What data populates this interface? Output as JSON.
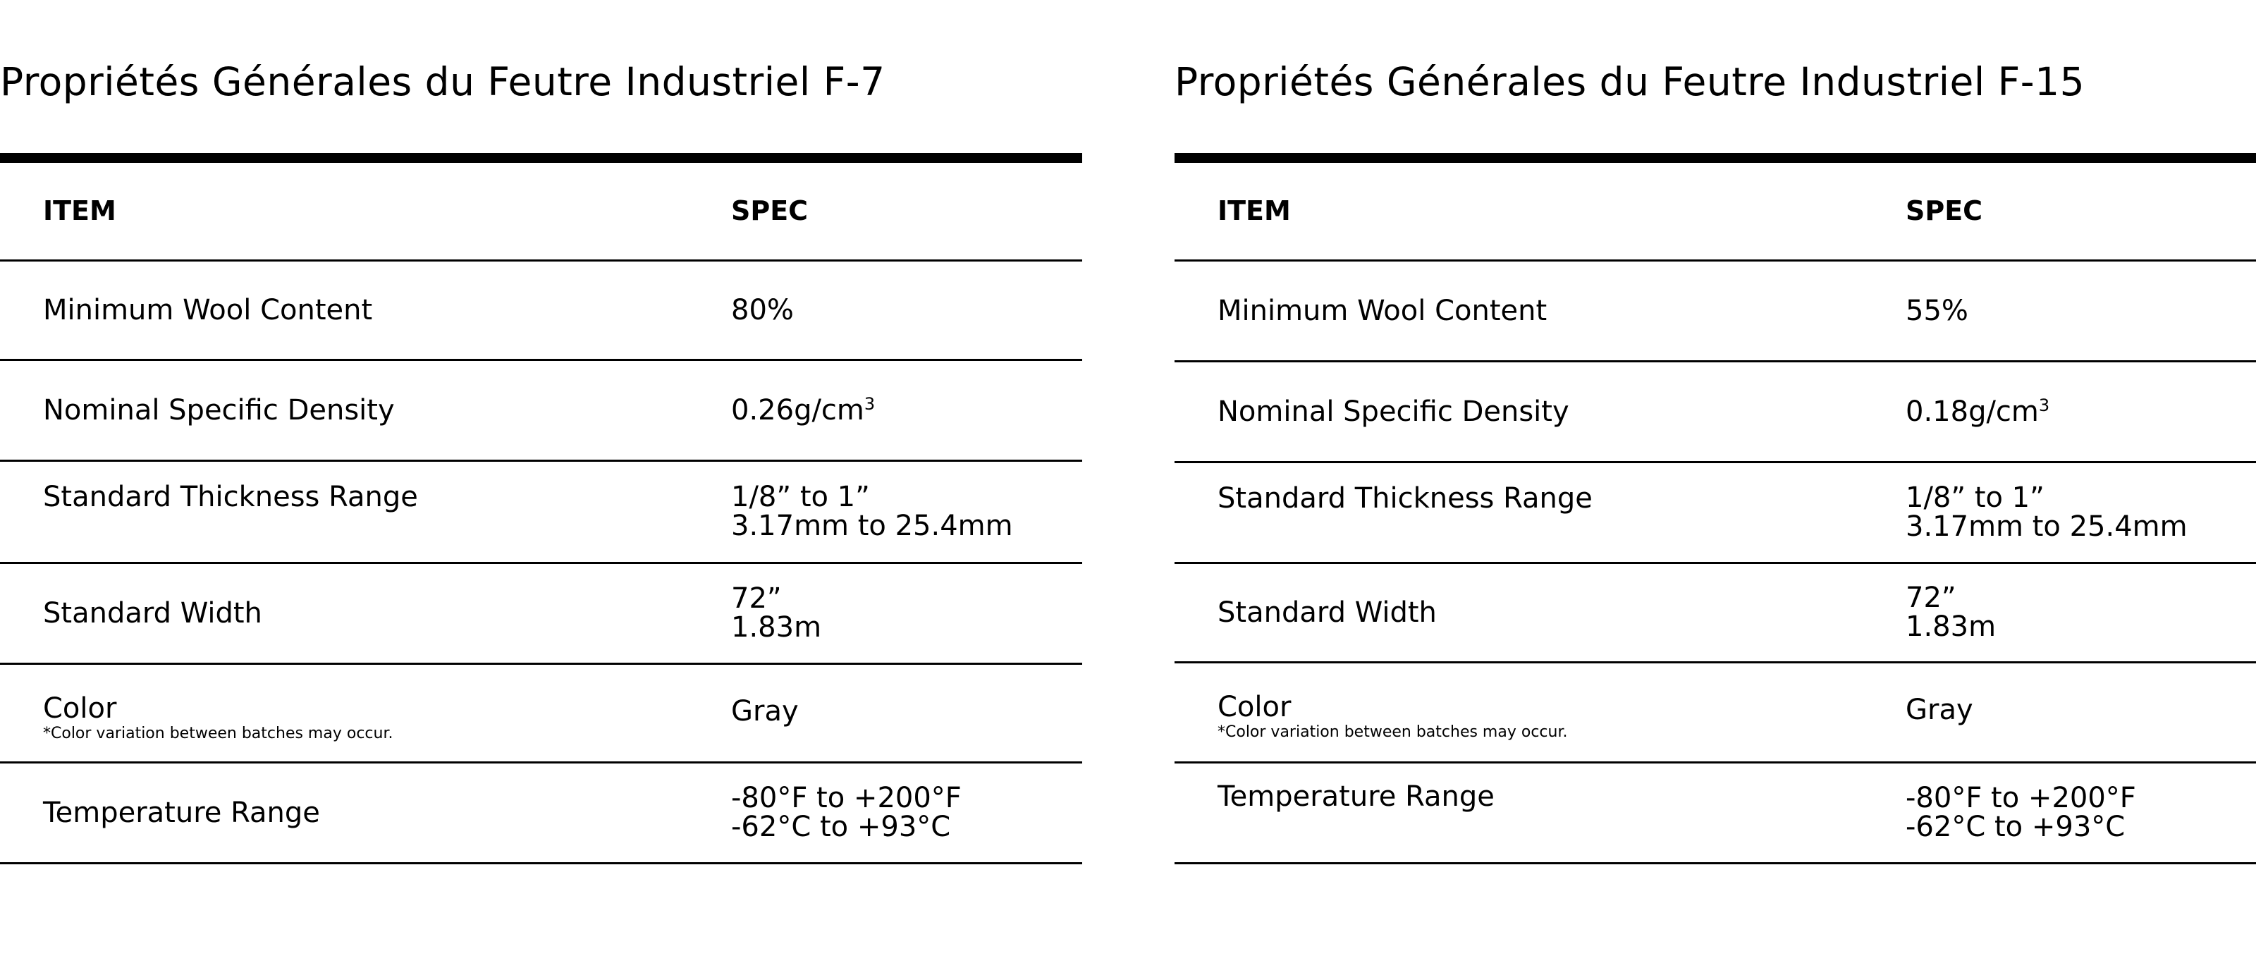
{
  "tables": [
    {
      "title": "Propriétés Générales du Feutre Industriel F-7",
      "headers": {
        "item": "ITEM",
        "spec": "SPEC"
      },
      "rows": [
        {
          "item": "Minimum Wool Content",
          "spec": [
            "80%"
          ]
        },
        {
          "item": "Nominal Specific Density",
          "spec": [
            "0.26g/cm"
          ],
          "spec_sup": "3"
        },
        {
          "item": "Standard Thickness Range",
          "spec": [
            "1/8” to 1”",
            "3.17mm to 25.4mm"
          ]
        },
        {
          "item": "Standard Width",
          "spec": [
            "72”",
            "1.83m"
          ]
        },
        {
          "item": "Color",
          "note": "*Color variation between batches may occur.",
          "spec": [
            "Gray"
          ]
        },
        {
          "item": "Temperature Range",
          "spec": [
            "-80°F to +200°F",
            "-62°C to +93°C"
          ]
        }
      ]
    },
    {
      "title": "Propriétés Générales du Feutre Industriel F-15",
      "headers": {
        "item": "ITEM",
        "spec": "SPEC"
      },
      "rows": [
        {
          "item": "Minimum Wool Content",
          "spec": [
            "55%"
          ]
        },
        {
          "item": "Nominal Specific Density",
          "spec": [
            "0.18g/cm"
          ],
          "spec_sup": "3"
        },
        {
          "item": "Standard Thickness Range",
          "spec": [
            "1/8” to 1”",
            "3.17mm to 25.4mm"
          ]
        },
        {
          "item": "Standard Width",
          "spec": [
            "72”",
            "1.83m"
          ]
        },
        {
          "item": "Color",
          "note": "*Color variation between batches may occur.",
          "spec": [
            "Gray"
          ]
        },
        {
          "item": "Temperature Range",
          "spec": [
            "-80°F to +200°F",
            "-62°C to +93°C"
          ]
        }
      ]
    }
  ]
}
